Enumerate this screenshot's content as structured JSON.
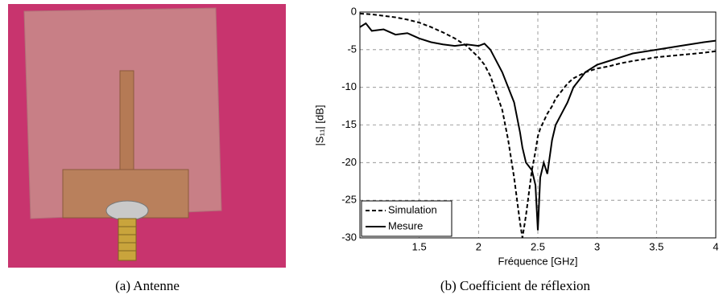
{
  "captions": [
    "(a) Antenne",
    "(b) Coefficient de réflexion"
  ],
  "chart_data": {
    "type": "line",
    "xlabel": "Fréquence [GHz]",
    "ylabel": "|S₁₁| [dB]",
    "x": [
      1.0,
      1.05,
      1.1,
      1.2,
      1.3,
      1.4,
      1.5,
      1.6,
      1.7,
      1.8,
      1.9,
      2.0,
      2.05,
      2.1,
      2.2,
      2.25,
      2.3,
      2.35,
      2.37,
      2.4,
      2.45,
      2.48,
      2.5,
      2.52,
      2.55,
      2.58,
      2.62,
      2.65,
      2.7,
      2.75,
      2.8,
      2.9,
      3.0,
      3.1,
      3.2,
      3.3,
      3.5,
      3.7,
      3.9,
      4.0
    ],
    "series": [
      {
        "name": "Simulation",
        "color": "#000000",
        "dashed": true,
        "values": [
          -0.2,
          -0.25,
          -0.3,
          -0.5,
          -0.7,
          -1,
          -1.4,
          -2,
          -2.7,
          -3.5,
          -4.5,
          -6,
          -7,
          -8.5,
          -13,
          -17,
          -22,
          -28,
          -30,
          -27,
          -21,
          -18.5,
          -16.5,
          -15.5,
          -14.5,
          -13.5,
          -12.5,
          -11.5,
          -10.5,
          -9.5,
          -8.8,
          -8,
          -7.5,
          -7.2,
          -6.8,
          -6.5,
          -6,
          -5.7,
          -5.4,
          -5.2
        ]
      },
      {
        "name": "Mesure",
        "color": "#000000",
        "dashed": false,
        "values": [
          -2,
          -1.5,
          -2.5,
          -2.3,
          -3,
          -2.8,
          -3.5,
          -4,
          -4.3,
          -4.5,
          -4.3,
          -4.5,
          -4.2,
          -5,
          -8,
          -10,
          -12,
          -16,
          -18,
          -20,
          -21,
          -23,
          -29,
          -22,
          -20,
          -21.5,
          -17,
          -15,
          -13.5,
          -12,
          -10,
          -8,
          -7,
          -6.5,
          -6,
          -5.5,
          -5,
          -4.5,
          -4,
          -3.8
        ]
      }
    ],
    "xlim": [
      1.0,
      4
    ],
    "xticks": [
      1.5,
      2,
      2.5,
      3,
      3.5,
      4
    ],
    "ylim": [
      -30,
      0
    ],
    "yticks": [
      0,
      -5,
      -10,
      -15,
      -20,
      -25,
      -30
    ],
    "grid": true,
    "legend": "lower left"
  }
}
